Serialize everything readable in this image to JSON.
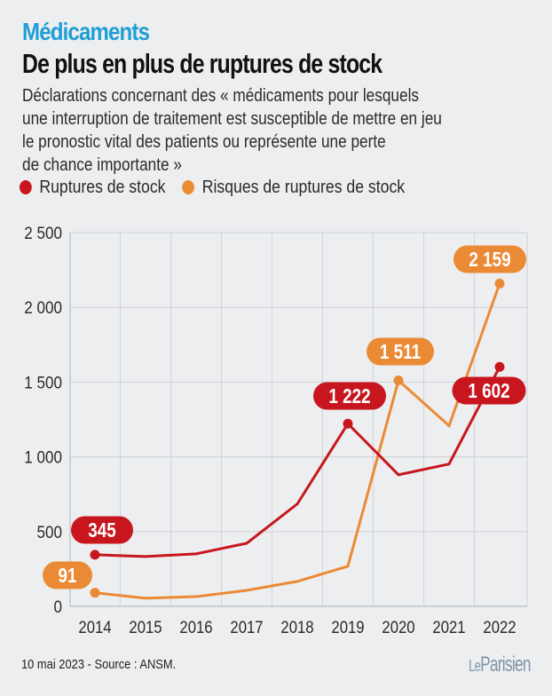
{
  "header": {
    "kicker": "Médicaments",
    "title": "De plus en plus de ruptures de stock",
    "subtitle_lines": [
      "Déclarations concernant des « médicaments pour lesquels",
      "une interruption de traitement est susceptible de mettre en jeu",
      "le pronostic vital des patients ou représente une perte",
      "de chance importante »"
    ]
  },
  "colors": {
    "kicker": "#1f9ed6",
    "ruptures": "#c8161e",
    "risques": "#eb8a34",
    "grid": "#d3d6da",
    "background": "#edeef0"
  },
  "chart_data": {
    "type": "line",
    "title": "De plus en plus de ruptures de stock",
    "xlabel": "",
    "ylabel": "",
    "x": [
      "2014",
      "2015",
      "2016",
      "2017",
      "2018",
      "2019",
      "2020",
      "2021",
      "2022"
    ],
    "ylim": [
      0,
      2500
    ],
    "yticks": [
      0,
      500,
      1000,
      1500,
      2000,
      2500
    ],
    "ytick_labels": [
      "0",
      "500",
      "1 000",
      "1 500",
      "2 000",
      "2 500"
    ],
    "grid": true,
    "legend_position": "top-left",
    "series": [
      {
        "name": "Ruptures de stock",
        "color": "#c8161e",
        "values": [
          345,
          333,
          351,
          422,
          685,
          1222,
          880,
          952,
          1602
        ],
        "annotations": [
          {
            "index": 0,
            "label": "345"
          },
          {
            "index": 5,
            "label": "1 222"
          },
          {
            "index": 8,
            "label": "1 602"
          }
        ]
      },
      {
        "name": "Risques de ruptures de stock",
        "color": "#eb8a34",
        "values": [
          91,
          54,
          65,
          107,
          167,
          268,
          1511,
          1208,
          2159
        ],
        "annotations": [
          {
            "index": 0,
            "label": "91"
          },
          {
            "index": 6,
            "label": "1 511"
          },
          {
            "index": 8,
            "label": "2 159"
          }
        ]
      }
    ]
  },
  "footer": {
    "source": "10 mai 2023 - Source : ANSM.",
    "logo_le": "Le",
    "logo_name": "Parisien"
  }
}
